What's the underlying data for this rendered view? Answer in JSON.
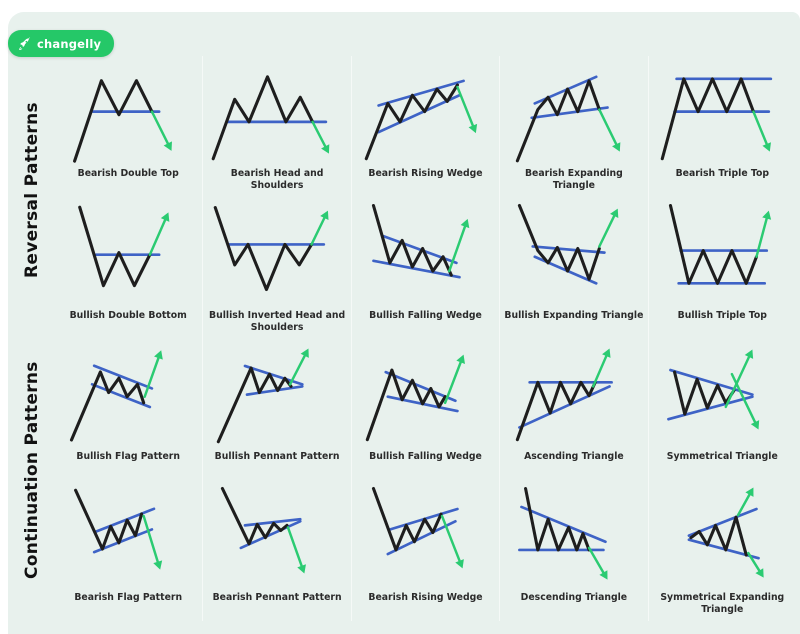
{
  "logo": {
    "text": "changelly",
    "icon": "rocket-icon",
    "bg_color": "#25C868"
  },
  "colors": {
    "page_bg": "#FFFFFF",
    "panel_bg": "#E8F1ED",
    "price_line": "#1E1E1E",
    "trend_line": "#3E63C6",
    "signal_arrow": "#2BCB72",
    "label_color": "#2B2B2B"
  },
  "sections": [
    {
      "label": "Reversal Patterns",
      "rows": [
        [
          {
            "label": "Bearish Double Top",
            "pattern": "bearish-double-top",
            "signal": "down"
          },
          {
            "label": "Bearish Head and Shoulders",
            "pattern": "bearish-head-and-shoulders",
            "signal": "down"
          },
          {
            "label": "Bearish Rising Wedge",
            "pattern": "bearish-rising-wedge",
            "signal": "down"
          },
          {
            "label": "Bearish Expanding Triangle",
            "pattern": "bearish-expanding-triangle",
            "signal": "down"
          },
          {
            "label": "Bearish Triple Top",
            "pattern": "bearish-triple-top",
            "signal": "down"
          }
        ],
        [
          {
            "label": "Bullish Double Bottom",
            "pattern": "bullish-double-bottom",
            "signal": "up"
          },
          {
            "label": "Bullish Inverted Head and Shoulders",
            "pattern": "bullish-inverted-head-and-shoulders",
            "signal": "up"
          },
          {
            "label": "Bullish Falling Wedge",
            "pattern": "bullish-falling-wedge",
            "signal": "up"
          },
          {
            "label": "Bullish Expanding Triangle",
            "pattern": "bullish-expanding-triangle",
            "signal": "up"
          },
          {
            "label": "Bullish Triple Top",
            "pattern": "bullish-triple-top",
            "signal": "up"
          }
        ]
      ]
    },
    {
      "label": "Continuation Patterns",
      "rows": [
        [
          {
            "label": "Bullish Flag Pattern",
            "pattern": "bullish-flag",
            "signal": "up"
          },
          {
            "label": "Bullish Pennant Pattern",
            "pattern": "bullish-pennant",
            "signal": "up"
          },
          {
            "label": "Bullish Falling Wedge",
            "pattern": "bullish-falling-wedge-cont",
            "signal": "up"
          },
          {
            "label": "Ascending Triangle",
            "pattern": "ascending-triangle",
            "signal": "up"
          },
          {
            "label": "Symmetrical Triangle",
            "pattern": "symmetrical-triangle",
            "signal": "both"
          }
        ],
        [
          {
            "label": "Bearish Flag Pattern",
            "pattern": "bearish-flag",
            "signal": "down"
          },
          {
            "label": "Bearish Pennant Pattern",
            "pattern": "bearish-pennant",
            "signal": "down"
          },
          {
            "label": "Bearish Rising Wedge",
            "pattern": "bearish-rising-wedge-cont",
            "signal": "down"
          },
          {
            "label": "Descending Triangle",
            "pattern": "descending-triangle",
            "signal": "down"
          },
          {
            "label": "Symmetrical Expanding Triangle",
            "pattern": "symmetrical-expanding-triangle",
            "signal": "both"
          }
        ]
      ]
    }
  ]
}
